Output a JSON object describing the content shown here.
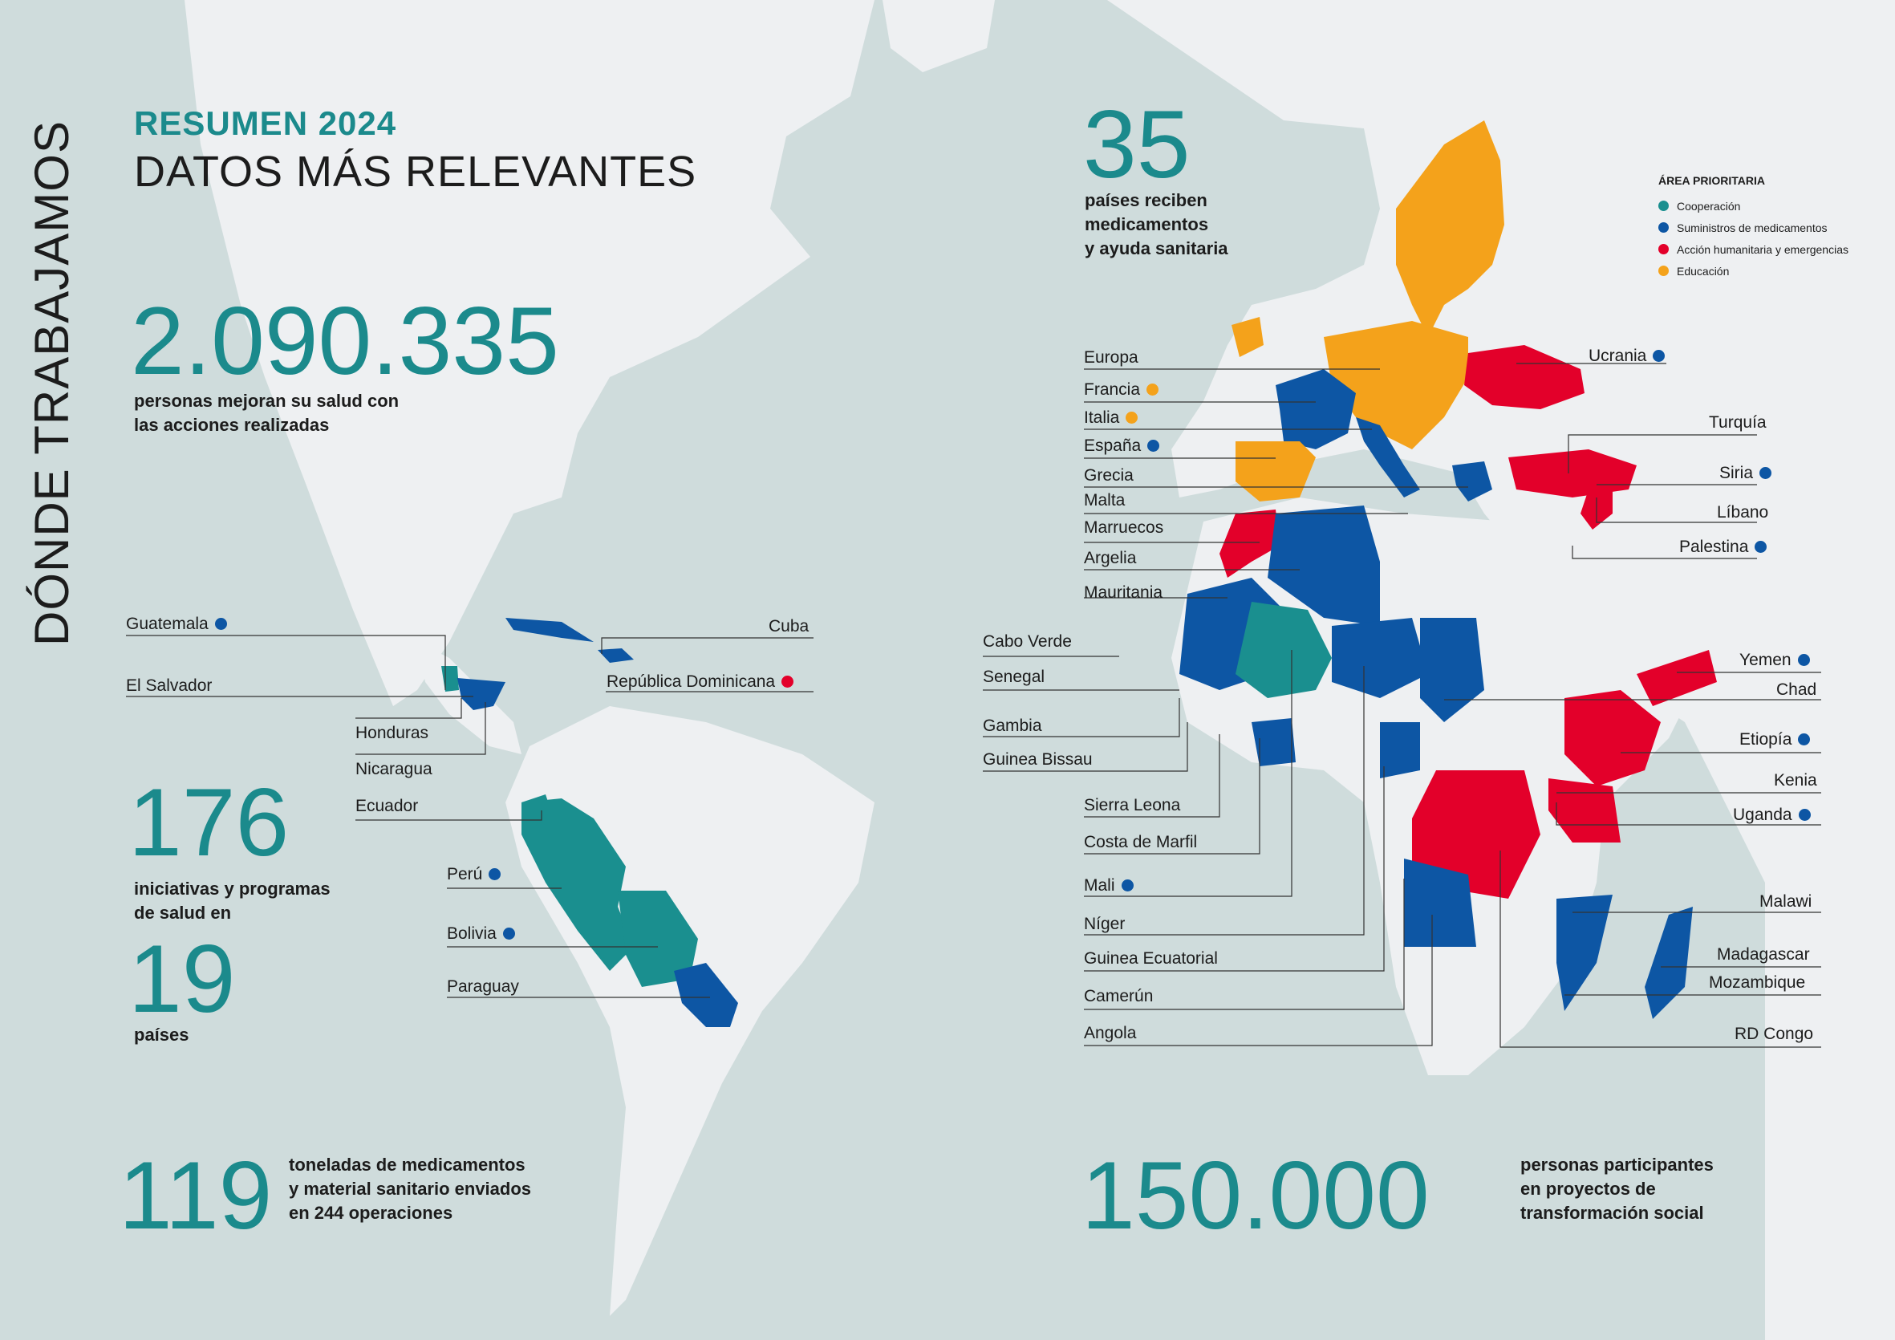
{
  "sidebar_title": "DÓNDE TRABAJAMOS",
  "header": {
    "overline": "RESUMEN 2024",
    "title": "DATOS MÁS RELEVANTES"
  },
  "stats": {
    "people": {
      "value": "2.090.335",
      "text1": "personas mejoran su salud con",
      "text2": "las acciones realizadas"
    },
    "initiatives": {
      "value": "176",
      "text1": "iniciativas y programas",
      "text2": "de salud en"
    },
    "countries_in": {
      "value": "19",
      "text1": "países"
    },
    "tons": {
      "value": "119",
      "text1": "toneladas de medicamentos",
      "text2": "y material sanitario enviados",
      "text3": "en 244 operaciones"
    },
    "countries_receive": {
      "value": "35",
      "text1": "países reciben",
      "text2": "medicamentos",
      "text3": "y ayuda sanitaria"
    },
    "participants": {
      "value": "150.000",
      "text1": "personas participantes",
      "text2": "en proyectos de",
      "text3": "transformación social"
    }
  },
  "legend": {
    "title": "ÁREA PRIORITARIA",
    "items": [
      {
        "label": "Cooperación",
        "color": "#1a8f8f"
      },
      {
        "label": "Suministros de medicamentos",
        "color": "#0d56a4"
      },
      {
        "label": "Acción humanitaria y emergencias",
        "color": "#e3002a"
      },
      {
        "label": "Educación",
        "color": "#f4a21b"
      }
    ]
  },
  "colors": {
    "cooperacion": "#1a8f8f",
    "suministros": "#0d56a4",
    "humanitaria": "#e3002a",
    "educacion": "#f4a21b",
    "ocean": "#cfdcdc",
    "land": "#eef0f2"
  },
  "americas_labels": {
    "guatemala": "Guatemala",
    "el_salvador": "El Salvador",
    "honduras": "Honduras",
    "nicaragua": "Nicaragua",
    "ecuador": "Ecuador",
    "peru": "Perú",
    "bolivia": "Bolivia",
    "paraguay": "Paraguay",
    "cuba": "Cuba",
    "republica_dominicana": "República Dominicana"
  },
  "europe_labels": {
    "europa": "Europa",
    "francia": "Francia",
    "italia": "Italia",
    "espana": "España",
    "grecia": "Grecia",
    "malta": "Malta",
    "marruecos": "Marruecos",
    "argelia": "Argelia",
    "mauritania": "Mauritania",
    "ucrania": "Ucrania",
    "turquia": "Turquía",
    "siria": "Siria",
    "libano": "Líbano",
    "palestina": "Palestina"
  },
  "africa_labels": {
    "cabo_verde": "Cabo Verde",
    "senegal": "Senegal",
    "gambia": "Gambia",
    "guinea_bissau": "Guinea Bissau",
    "sierra_leona": "Sierra Leona",
    "costa_de_marfil": "Costa de Marfil",
    "mali": "Mali",
    "niger": "Níger",
    "guinea_ecuatorial": "Guinea Ecuatorial",
    "camerun": "Camerún",
    "angola": "Angola",
    "yemen": "Yemen",
    "chad": "Chad",
    "etiopia": "Etiopía",
    "kenia": "Kenia",
    "uganda": "Uganda",
    "malawi": "Malawi",
    "madagascar": "Madagascar",
    "mozambique": "Mozambique",
    "rd_congo": "RD Congo"
  }
}
